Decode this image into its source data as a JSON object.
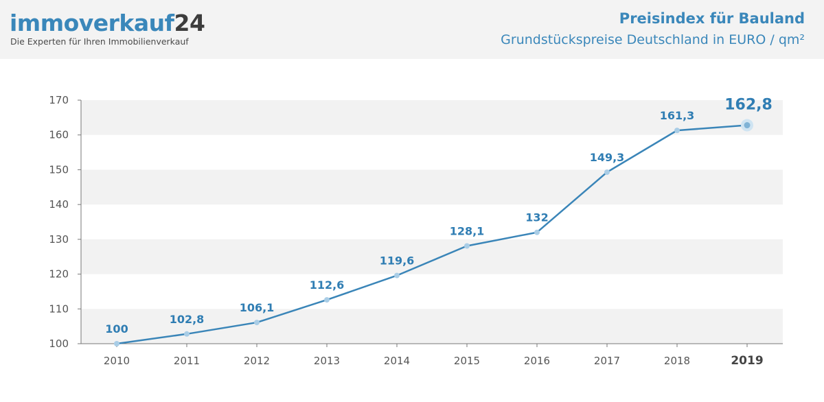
{
  "header": {
    "logo_part1": "immoverkauf",
    "logo_part2": "24",
    "tagline": "Die Experten für Ihren Immobilienverkauf",
    "title": "Preisindex für Bauland",
    "subtitle": "Grundstückspreise Deutschland in EURO / qm²"
  },
  "colors": {
    "line": "#3a85b8",
    "point": "#a9cde6",
    "band": "#f2f2f2",
    "label": "#2f7db3",
    "header_bg": "#f3f3f3"
  },
  "chart_data": {
    "type": "line",
    "title": "Preisindex für Bauland",
    "subtitle": "Grundstückspreise Deutschland in EURO / qm²",
    "xlabel": "",
    "ylabel": "",
    "x": [
      "2010",
      "2011",
      "2012",
      "2013",
      "2014",
      "2015",
      "2016",
      "2017",
      "2018",
      "2019"
    ],
    "values": [
      100,
      102.8,
      106.1,
      112.6,
      119.6,
      128.1,
      132,
      149.3,
      161.3,
      162.8
    ],
    "labels": [
      "100",
      "102,8",
      "106,1",
      "112,6",
      "119,6",
      "128,1",
      "132",
      "149,3",
      "161,3",
      "162,8"
    ],
    "highlight": "2019",
    "ylim": [
      100,
      170
    ],
    "yticks": [
      "100",
      "110",
      "120",
      "130",
      "140",
      "150",
      "160",
      "170"
    ],
    "grid": "alternating horizontal bands",
    "legend": "none"
  }
}
